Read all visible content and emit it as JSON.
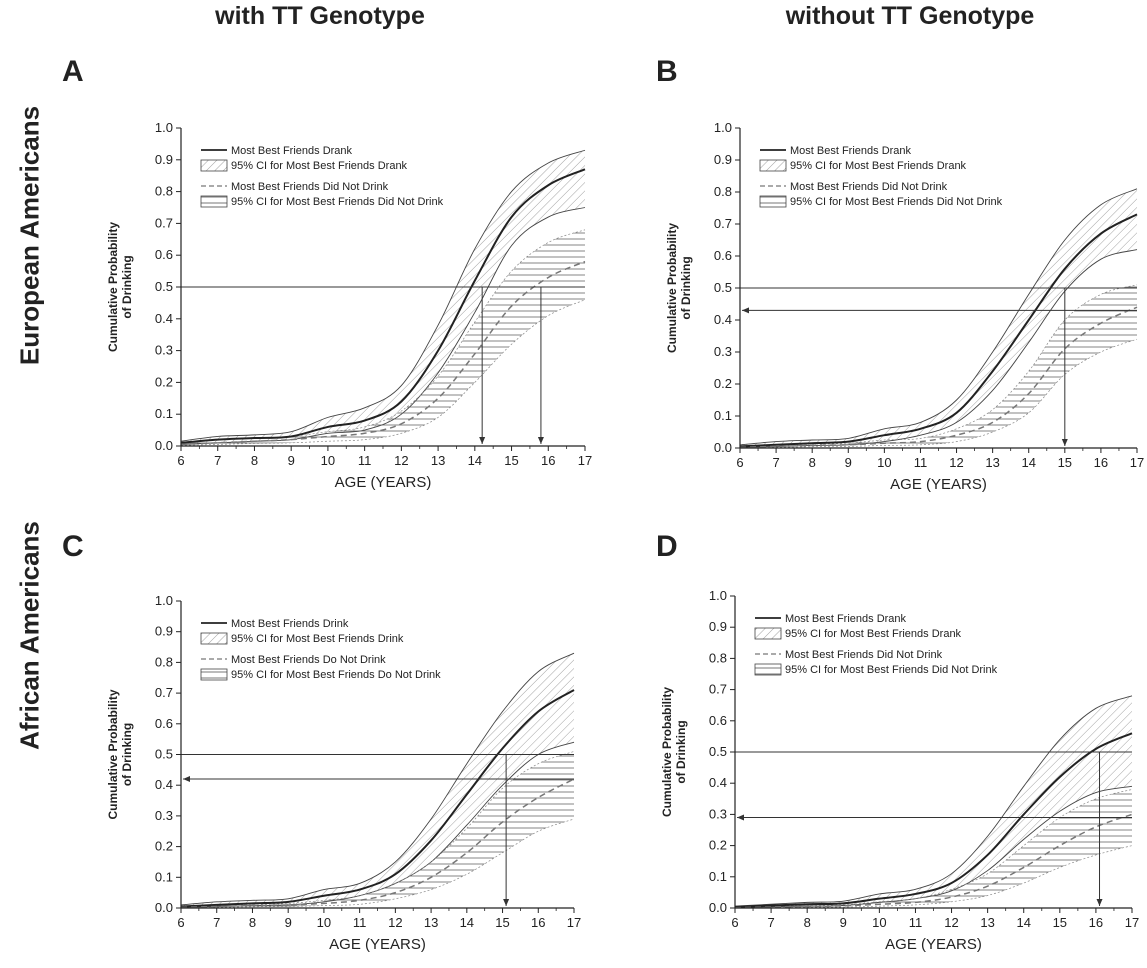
{
  "column_headers": [
    "with TT Genotype",
    "without TT Genotype"
  ],
  "row_headers": [
    "European Americans",
    "African Americans"
  ],
  "colors": {
    "line": "#222222",
    "dashed": "#777777",
    "hatch": "#8a8a8a",
    "reference": "#333333"
  },
  "chart_data": [
    {
      "panel": "A",
      "type": "line",
      "xlabel": "AGE (YEARS)",
      "ylabel": [
        "Cumulative Probability",
        "of Drinking"
      ],
      "xlim": [
        6,
        17
      ],
      "ylim": [
        0,
        1.0
      ],
      "x_ticks": [
        6,
        7,
        8,
        9,
        10,
        11,
        12,
        13,
        14,
        15,
        16,
        17
      ],
      "y_ticks": [
        "0.0",
        "0.1",
        "0.2",
        "0.3",
        "0.4",
        "0.5",
        "0.6",
        "0.7",
        "0.8",
        "0.9",
        "1.0"
      ],
      "legend": {
        "solid": "Most Best Friends Drank",
        "solid_ci": "95% CI for Most Best Friends Drank",
        "dashed": "Most Best Friends Did Not Drink",
        "dashed_ci": "95% CI for Most Best Friends Did Not Drink"
      },
      "x": [
        6,
        7,
        8,
        9,
        10,
        11,
        12,
        13,
        14,
        15,
        16,
        17
      ],
      "series": [
        {
          "values": [
            0.01,
            0.02,
            0.025,
            0.03,
            0.06,
            0.08,
            0.14,
            0.3,
            0.52,
            0.72,
            0.82,
            0.87
          ],
          "ci_low": [
            0.005,
            0.01,
            0.015,
            0.02,
            0.04,
            0.05,
            0.1,
            0.23,
            0.42,
            0.63,
            0.72,
            0.75
          ],
          "ci_high": [
            0.015,
            0.03,
            0.035,
            0.045,
            0.09,
            0.12,
            0.19,
            0.38,
            0.62,
            0.8,
            0.89,
            0.93
          ]
        },
        {
          "values": [
            0.005,
            0.01,
            0.015,
            0.02,
            0.03,
            0.04,
            0.07,
            0.15,
            0.29,
            0.44,
            0.53,
            0.58
          ],
          "ci_low": [
            0.002,
            0.005,
            0.008,
            0.01,
            0.015,
            0.02,
            0.04,
            0.09,
            0.2,
            0.32,
            0.41,
            0.46
          ],
          "ci_high": [
            0.01,
            0.02,
            0.025,
            0.03,
            0.045,
            0.06,
            0.11,
            0.22,
            0.39,
            0.55,
            0.64,
            0.68
          ]
        }
      ],
      "reference_lines": {
        "y": [
          0.5
        ],
        "x_arrows": [
          14.2,
          15.8
        ],
        "y_arrows": []
      }
    },
    {
      "panel": "B",
      "type": "line",
      "xlabel": "AGE (YEARS)",
      "ylabel": [
        "Cumulative Probability",
        "of Drinking"
      ],
      "xlim": [
        6,
        17
      ],
      "ylim": [
        0,
        1.0
      ],
      "x_ticks": [
        6,
        7,
        8,
        9,
        10,
        11,
        12,
        13,
        14,
        15,
        16,
        17
      ],
      "y_ticks": [
        "0.0",
        "0.1",
        "0.2",
        "0.3",
        "0.4",
        "0.5",
        "0.6",
        "0.7",
        "0.8",
        "0.9",
        "1.0"
      ],
      "legend": {
        "solid": "Most Best Friends Drank",
        "solid_ci": "95% CI for Most Best Friends Drank",
        "dashed": "Most Best Friends Did Not Drink",
        "dashed_ci": "95% CI for Most Best Friends Did Not Drink"
      },
      "x": [
        6,
        7,
        8,
        9,
        10,
        11,
        12,
        13,
        14,
        15,
        16,
        17
      ],
      "series": [
        {
          "values": [
            0.005,
            0.01,
            0.015,
            0.02,
            0.04,
            0.06,
            0.11,
            0.24,
            0.4,
            0.56,
            0.67,
            0.73
          ],
          "ci_low": [
            0.002,
            0.005,
            0.008,
            0.01,
            0.02,
            0.04,
            0.08,
            0.18,
            0.33,
            0.49,
            0.59,
            0.62
          ],
          "ci_high": [
            0.01,
            0.02,
            0.025,
            0.03,
            0.06,
            0.08,
            0.15,
            0.3,
            0.48,
            0.65,
            0.76,
            0.81
          ]
        },
        {
          "values": [
            0.002,
            0.005,
            0.008,
            0.01,
            0.015,
            0.02,
            0.04,
            0.08,
            0.17,
            0.31,
            0.39,
            0.44
          ],
          "ci_low": [
            0.001,
            0.002,
            0.004,
            0.005,
            0.008,
            0.01,
            0.02,
            0.05,
            0.11,
            0.23,
            0.3,
            0.34
          ],
          "ci_high": [
            0.005,
            0.01,
            0.012,
            0.015,
            0.025,
            0.03,
            0.06,
            0.12,
            0.24,
            0.4,
            0.48,
            0.51
          ]
        }
      ],
      "reference_lines": {
        "y": [
          0.5,
          0.43
        ],
        "x_arrows": [
          15.0
        ],
        "y_arrows": [
          0.43
        ]
      }
    },
    {
      "panel": "C",
      "type": "line",
      "xlabel": "AGE (YEARS)",
      "ylabel": [
        "Cumulative Probability",
        "of Drinking"
      ],
      "xlim": [
        6,
        17
      ],
      "ylim": [
        0,
        1.0
      ],
      "x_ticks": [
        6,
        7,
        8,
        9,
        10,
        11,
        12,
        13,
        14,
        15,
        16,
        17
      ],
      "y_ticks": [
        "0.0",
        "0.1",
        "0.2",
        "0.3",
        "0.4",
        "0.5",
        "0.6",
        "0.7",
        "0.8",
        "0.9",
        "1.0"
      ],
      "legend": {
        "solid": "Most Best Friends Drink",
        "solid_ci": "95% CI for Most Best Friends Drink",
        "dashed": "Most Best Friends Do Not Drink",
        "dashed_ci": "95% CI for Most Best Friends Do Not Drink"
      },
      "x": [
        6,
        7,
        8,
        9,
        10,
        11,
        12,
        13,
        14,
        15,
        16,
        17
      ],
      "series": [
        {
          "values": [
            0.005,
            0.01,
            0.015,
            0.02,
            0.04,
            0.06,
            0.11,
            0.22,
            0.37,
            0.52,
            0.64,
            0.71
          ],
          "ci_low": [
            0.002,
            0.005,
            0.008,
            0.01,
            0.02,
            0.04,
            0.08,
            0.15,
            0.27,
            0.4,
            0.5,
            0.54
          ],
          "ci_high": [
            0.01,
            0.02,
            0.025,
            0.03,
            0.06,
            0.08,
            0.15,
            0.29,
            0.47,
            0.64,
            0.77,
            0.83
          ]
        },
        {
          "values": [
            0.002,
            0.005,
            0.008,
            0.01,
            0.015,
            0.025,
            0.05,
            0.1,
            0.18,
            0.28,
            0.36,
            0.42
          ],
          "ci_low": [
            0.001,
            0.002,
            0.004,
            0.005,
            0.008,
            0.012,
            0.03,
            0.06,
            0.11,
            0.18,
            0.25,
            0.29
          ],
          "ci_high": [
            0.005,
            0.01,
            0.012,
            0.015,
            0.025,
            0.04,
            0.08,
            0.15,
            0.26,
            0.39,
            0.47,
            0.51
          ]
        }
      ],
      "reference_lines": {
        "y": [
          0.5,
          0.42
        ],
        "x_arrows": [
          15.1
        ],
        "y_arrows": [
          0.42
        ]
      }
    },
    {
      "panel": "D",
      "type": "line",
      "xlabel": "AGE (YEARS)",
      "ylabel": [
        "Cumulative Probability",
        "of Drinking"
      ],
      "xlim": [
        6,
        17
      ],
      "ylim": [
        0,
        1.0
      ],
      "x_ticks": [
        6,
        7,
        8,
        9,
        10,
        11,
        12,
        13,
        14,
        15,
        16,
        17
      ],
      "y_ticks": [
        "0.0",
        "0.1",
        "0.2",
        "0.3",
        "0.4",
        "0.5",
        "0.6",
        "0.7",
        "0.8",
        "0.9",
        "1.0"
      ],
      "legend": {
        "solid": "Most Best Friends Drank",
        "solid_ci": "95% CI for Most Best Friends Drank",
        "dashed": "Most Best Friends Did Not Drink",
        "dashed_ci": "95% CI for Most Best Friends Did Not Drink"
      },
      "x": [
        6,
        7,
        8,
        9,
        10,
        11,
        12,
        13,
        14,
        15,
        16,
        17
      ],
      "series": [
        {
          "values": [
            0.003,
            0.008,
            0.012,
            0.015,
            0.03,
            0.045,
            0.08,
            0.17,
            0.3,
            0.42,
            0.51,
            0.56
          ],
          "ci_low": [
            0.001,
            0.004,
            0.006,
            0.008,
            0.018,
            0.03,
            0.055,
            0.12,
            0.22,
            0.31,
            0.37,
            0.39
          ],
          "ci_high": [
            0.006,
            0.012,
            0.018,
            0.022,
            0.045,
            0.06,
            0.11,
            0.23,
            0.39,
            0.54,
            0.64,
            0.68
          ]
        },
        {
          "values": [
            0.001,
            0.003,
            0.005,
            0.007,
            0.012,
            0.018,
            0.035,
            0.07,
            0.13,
            0.2,
            0.26,
            0.3
          ],
          "ci_low": [
            0.0,
            0.001,
            0.002,
            0.003,
            0.006,
            0.01,
            0.02,
            0.04,
            0.08,
            0.13,
            0.17,
            0.2
          ],
          "ci_high": [
            0.003,
            0.006,
            0.008,
            0.01,
            0.02,
            0.03,
            0.06,
            0.11,
            0.2,
            0.29,
            0.35,
            0.38
          ]
        }
      ],
      "reference_lines": {
        "y": [
          0.5,
          0.29
        ],
        "x_arrows": [
          16.1
        ],
        "y_arrows": [
          0.29
        ]
      }
    }
  ]
}
